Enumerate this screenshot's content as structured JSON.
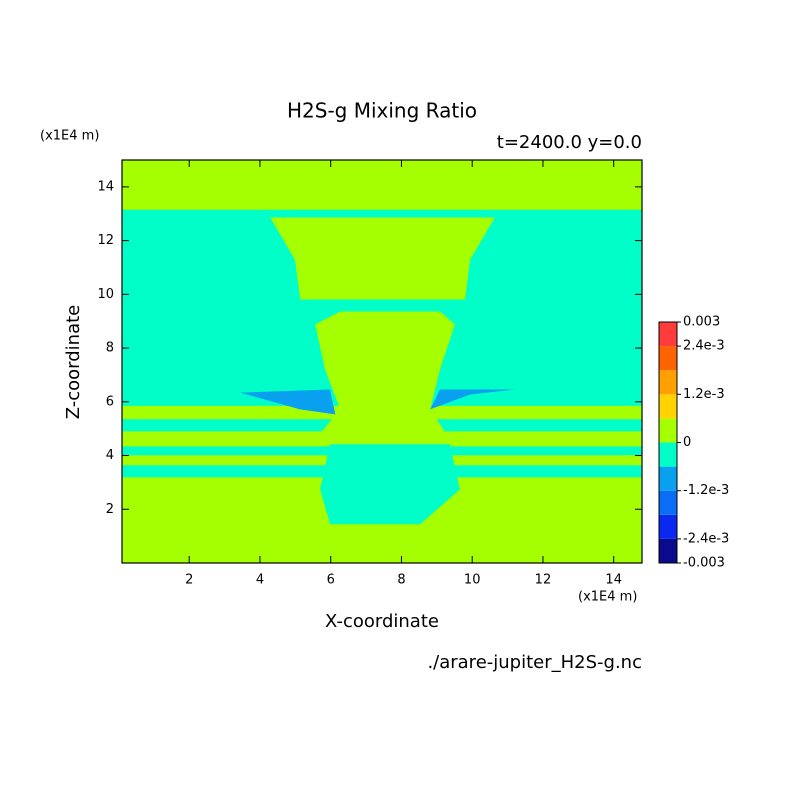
{
  "chart_data": {
    "type": "contourf",
    "title": "H2S-g Mixing Ratio",
    "subtitle": "t=2400.0 y=0.0",
    "x_label": "X-coordinate",
    "y_label": "Z-coordinate",
    "x_unit": "(x1E4 m)",
    "y_unit": "(x1E4 m)",
    "source": "./arare-jupiter_H2S-g.nc",
    "xlim": [
      0.1,
      14.8
    ],
    "ylim": [
      0,
      15
    ],
    "xticks": [
      2,
      4,
      6,
      8,
      10,
      12,
      14
    ],
    "yticks": [
      2,
      4,
      6,
      8,
      10,
      12,
      14
    ],
    "background_level": 0,
    "colorbar": {
      "levels": [
        -0.003,
        -0.0024,
        -0.0018,
        -0.0012,
        -0.0006,
        0,
        0.0006,
        0.0012,
        0.0018,
        0.0024,
        0.003
      ],
      "colors": [
        "#0a0a8c",
        "#0a28f0",
        "#0a6ef5",
        "#0aa0f0",
        "#00ffc8",
        "#a5ff00",
        "#ffd200",
        "#ffa000",
        "#ff6400",
        "#ff3c3c"
      ],
      "ticks": [
        -0.003,
        {
          "value": -0.0024,
          "label": "-2.4e-3"
        },
        {
          "value": -0.0012,
          "label": "-1.2e-3"
        },
        0,
        {
          "value": 0.0012,
          "label": "1.2e-3"
        },
        {
          "value": 0.0024,
          "label": "2.4e-3"
        },
        0.003
      ]
    },
    "regions": [
      {
        "level": -0.0006,
        "x": [
          0.1,
          14.8,
          14.8,
          0.1
        ],
        "z": [
          13.15,
          13.15,
          5.85,
          5.85
        ]
      },
      {
        "level": -0.0006,
        "x": [
          0.1,
          14.8,
          14.8,
          0.1
        ],
        "z": [
          5.35,
          5.35,
          4.9,
          4.9
        ]
      },
      {
        "level": -0.0006,
        "x": [
          0.1,
          14.8,
          14.8,
          0.1
        ],
        "z": [
          4.34,
          4.34,
          4.01,
          4.01
        ]
      },
      {
        "level": -0.0006,
        "x": [
          0.1,
          14.8,
          14.8,
          0.1
        ],
        "z": [
          3.64,
          3.64,
          3.19,
          3.19
        ]
      },
      {
        "level": 0,
        "x": [
          4.29,
          10.64,
          9.94,
          9.8,
          5.14,
          4.99
        ],
        "z": [
          12.86,
          12.86,
          11.29,
          9.81,
          9.81,
          11.29
        ]
      },
      {
        "level": -0.0006,
        "x": [
          5.98,
          9.37,
          9.65,
          8.53,
          5.98,
          5.7
        ],
        "z": [
          4.42,
          4.42,
          2.74,
          1.44,
          1.44,
          2.74
        ]
      },
      {
        "level": 0,
        "x": [
          5.56,
          6.27,
          9.09,
          9.51,
          9.09,
          8.81,
          9.37,
          5.56,
          6.27,
          5.84
        ],
        "z": [
          8.88,
          9.36,
          9.36,
          8.88,
          7.2,
          5.72,
          4.6,
          4.6,
          5.72,
          7.2
        ]
      },
      {
        "level": -0.0012,
        "x": [
          3.44,
          5.98,
          6.13,
          5.13
        ],
        "z": [
          6.34,
          6.46,
          5.53,
          5.72
        ]
      },
      {
        "level": -0.0012,
        "x": [
          8.81,
          9.09,
          11.21,
          9.94
        ],
        "z": [
          5.72,
          6.46,
          6.46,
          6.27
        ]
      }
    ]
  }
}
